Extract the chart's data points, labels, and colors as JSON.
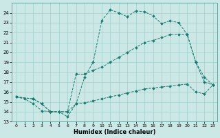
{
  "xlabel": "Humidex (Indice chaleur)",
  "bg_color": "#cce8e6",
  "line_color": "#1a7a6e",
  "grid_color": "#a0d0cc",
  "xlim": [
    -0.5,
    23.5
  ],
  "ylim": [
    13,
    25
  ],
  "xticks": [
    0,
    1,
    2,
    3,
    4,
    5,
    6,
    7,
    8,
    9,
    10,
    11,
    12,
    13,
    14,
    15,
    16,
    17,
    18,
    19,
    20,
    21,
    22,
    23
  ],
  "yticks": [
    13,
    14,
    15,
    16,
    17,
    18,
    19,
    20,
    21,
    22,
    23,
    24
  ],
  "series": [
    {
      "x": [
        0,
        1,
        2,
        3,
        4,
        5,
        6,
        7,
        8,
        9,
        10,
        11,
        12,
        13,
        14,
        15,
        16,
        17,
        18,
        19,
        20,
        21,
        22,
        23
      ],
      "y": [
        15.5,
        15.3,
        14.8,
        14.1,
        14.0,
        14.0,
        13.5,
        14.8,
        17.5,
        19.0,
        23.2,
        24.3,
        24.0,
        23.6,
        24.2,
        24.1,
        23.7,
        22.9,
        23.2,
        23.0,
        21.8,
        19.0,
        17.0,
        16.7
      ]
    },
    {
      "x": [
        0,
        2,
        3,
        4,
        5,
        6,
        7,
        8,
        9,
        10,
        11,
        12,
        13,
        14,
        15,
        16,
        17,
        18,
        19,
        20,
        21,
        22,
        23
      ],
      "y": [
        15.5,
        15.3,
        14.8,
        14.0,
        14.0,
        14.0,
        17.8,
        17.8,
        18.2,
        18.5,
        19.0,
        19.5,
        20.0,
        20.5,
        21.0,
        21.2,
        21.5,
        21.8,
        21.8,
        21.8,
        19.0,
        17.5,
        16.7
      ]
    },
    {
      "x": [
        0,
        2,
        3,
        4,
        5,
        6,
        7,
        8,
        9,
        10,
        11,
        12,
        13,
        14,
        15,
        16,
        17,
        18,
        19,
        20,
        21,
        22,
        23
      ],
      "y": [
        15.5,
        15.3,
        14.8,
        14.0,
        14.0,
        14.0,
        14.8,
        14.9,
        15.1,
        15.3,
        15.5,
        15.7,
        15.9,
        16.1,
        16.3,
        16.4,
        16.5,
        16.6,
        16.7,
        16.8,
        16.0,
        15.8,
        16.7
      ]
    }
  ]
}
